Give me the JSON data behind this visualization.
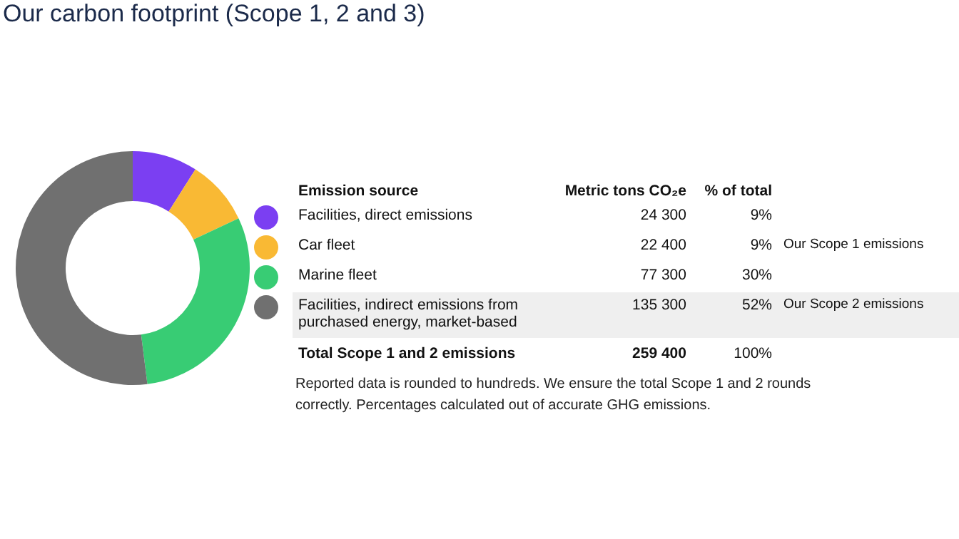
{
  "chart_data": {
    "type": "donut",
    "title": "Our carbon footprint (Scope 1, 2 and 3)",
    "legend_title": "Emission source",
    "categories": [
      "Facilities, direct emissions",
      "Car fleet",
      "Marine fleet",
      "Facilities, indirect emissions from purchased energy, market-based"
    ],
    "values": [
      9,
      9,
      30,
      52
    ],
    "colors": [
      "#7b3ff2",
      "#f9b934",
      "#38cc74",
      "#707070"
    ],
    "value_labels": [
      "9%",
      "9%",
      "30%",
      "52%"
    ],
    "legend": "right",
    "annotations": [
      "Metric tons CO₂e",
      "% of total",
      "Total Scope 1 and 2 emissions",
      "259 400",
      "100%",
      "Reported data is rounded to hundreds. We ensure the total Scope 1 and 2 rounds correctly. Percentages calculated out of accurate GHG emissions.",
      {
        "text": "24 300",
        "x": "Facilities, direct emissions"
      },
      {
        "text": "22 400",
        "x": "Car fleet"
      },
      {
        "text": "77 300",
        "x": "Marine fleet"
      },
      {
        "text": "135 300",
        "x": "Facilities, indirect emissions from purchased energy, market-based"
      },
      {
        "text": "Our Scope 1 emissions",
        "x": "Car fleet"
      },
      {
        "text": "Our Scope 2 emissions",
        "x": "Facilities, indirect emissions from purchased energy, market-based"
      }
    ]
  }
}
